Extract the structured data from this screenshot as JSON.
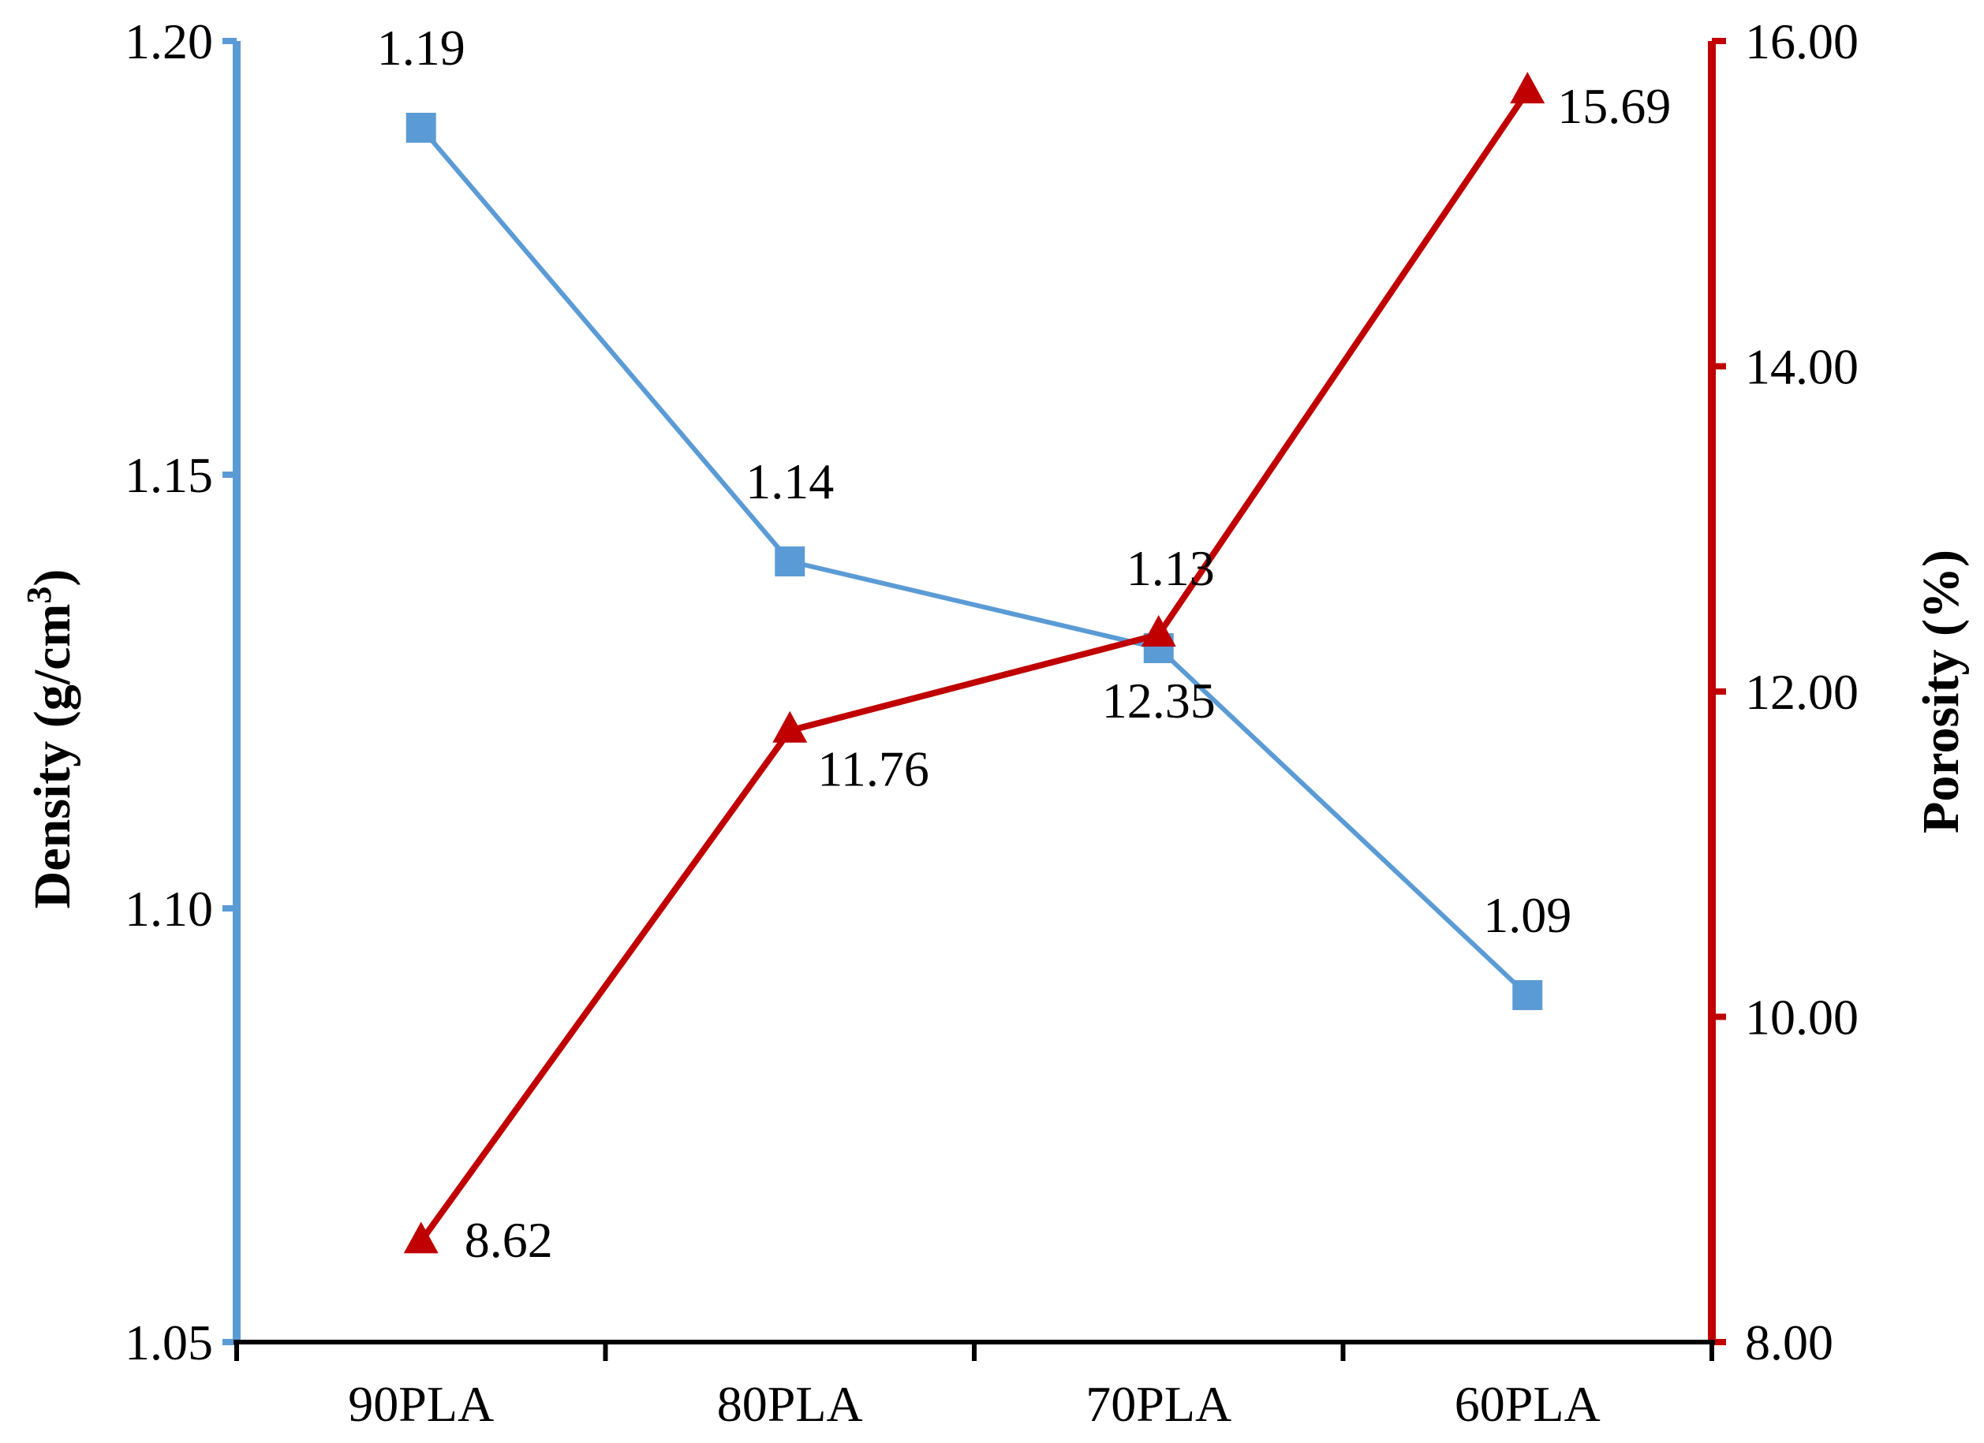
{
  "chart_data": {
    "type": "line",
    "categories": [
      "90PLA",
      "80PLA",
      "70PLA",
      "60PLA"
    ],
    "series": [
      {
        "axis": "left",
        "values": [
          1.19,
          1.14,
          1.13,
          1.09
        ],
        "labels": [
          "1.19",
          "1.14",
          "1.13",
          "1.09"
        ],
        "color": "#5b9bd5",
        "marker": "square"
      },
      {
        "axis": "right",
        "values": [
          8.62,
          11.76,
          12.35,
          15.69
        ],
        "labels": [
          "8.62",
          "11.76",
          "12.35",
          "15.69"
        ],
        "color": "#c00000",
        "marker": "triangle"
      }
    ],
    "y_left": {
      "title_main": "Density (g/cm",
      "title_sup": "3",
      "title_end": ")",
      "range": [
        1.05,
        1.2
      ],
      "ticks": [
        "1.05",
        "1.10",
        "1.15",
        "1.20"
      ],
      "color": "#5b9bd5"
    },
    "y_right": {
      "title": "Porosity (%)",
      "range": [
        8,
        16
      ],
      "ticks": [
        "8.00",
        "10.00",
        "12.00",
        "14.00",
        "16.00"
      ],
      "color": "#c00000"
    },
    "grid": false,
    "legend": "none"
  }
}
